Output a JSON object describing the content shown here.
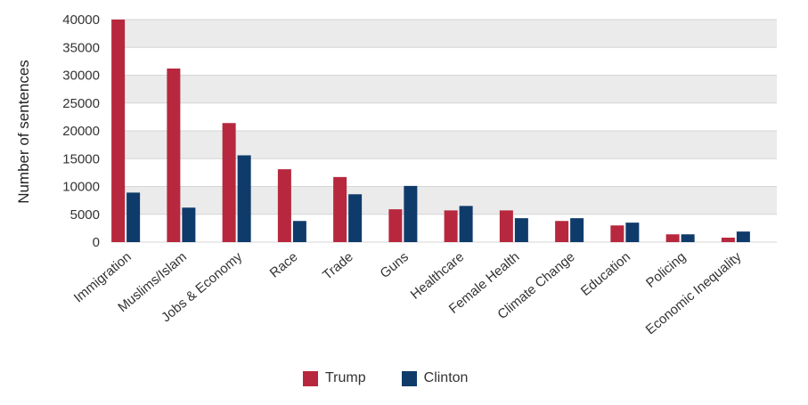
{
  "chart_data": {
    "type": "bar",
    "title": "",
    "xlabel": "",
    "ylabel": "Number of sentences",
    "ylim": [
      0,
      40000
    ],
    "yticks": [
      "0",
      "5000",
      "10000",
      "15000",
      "20000",
      "25000",
      "30000",
      "35000",
      "40000"
    ],
    "categories": [
      "Immigration",
      "Muslims/Islam",
      "Jobs & Economy",
      "Race",
      "Trade",
      "Guns",
      "Healthcare",
      "Female Health",
      "Climate Change",
      "Education",
      "Policing",
      "Economic Inequality"
    ],
    "series": [
      {
        "name": "Trump",
        "color": "#b7283e",
        "values": [
          40000,
          31200,
          21400,
          13100,
          11700,
          5900,
          5700,
          5700,
          3800,
          3000,
          1400,
          800
        ]
      },
      {
        "name": "Clinton",
        "color": "#0f3b6b",
        "values": [
          8900,
          6200,
          15600,
          3800,
          8600,
          10100,
          6500,
          4300,
          4300,
          3500,
          1400,
          1900
        ]
      }
    ],
    "grid": true,
    "legend_position": "bottom"
  }
}
